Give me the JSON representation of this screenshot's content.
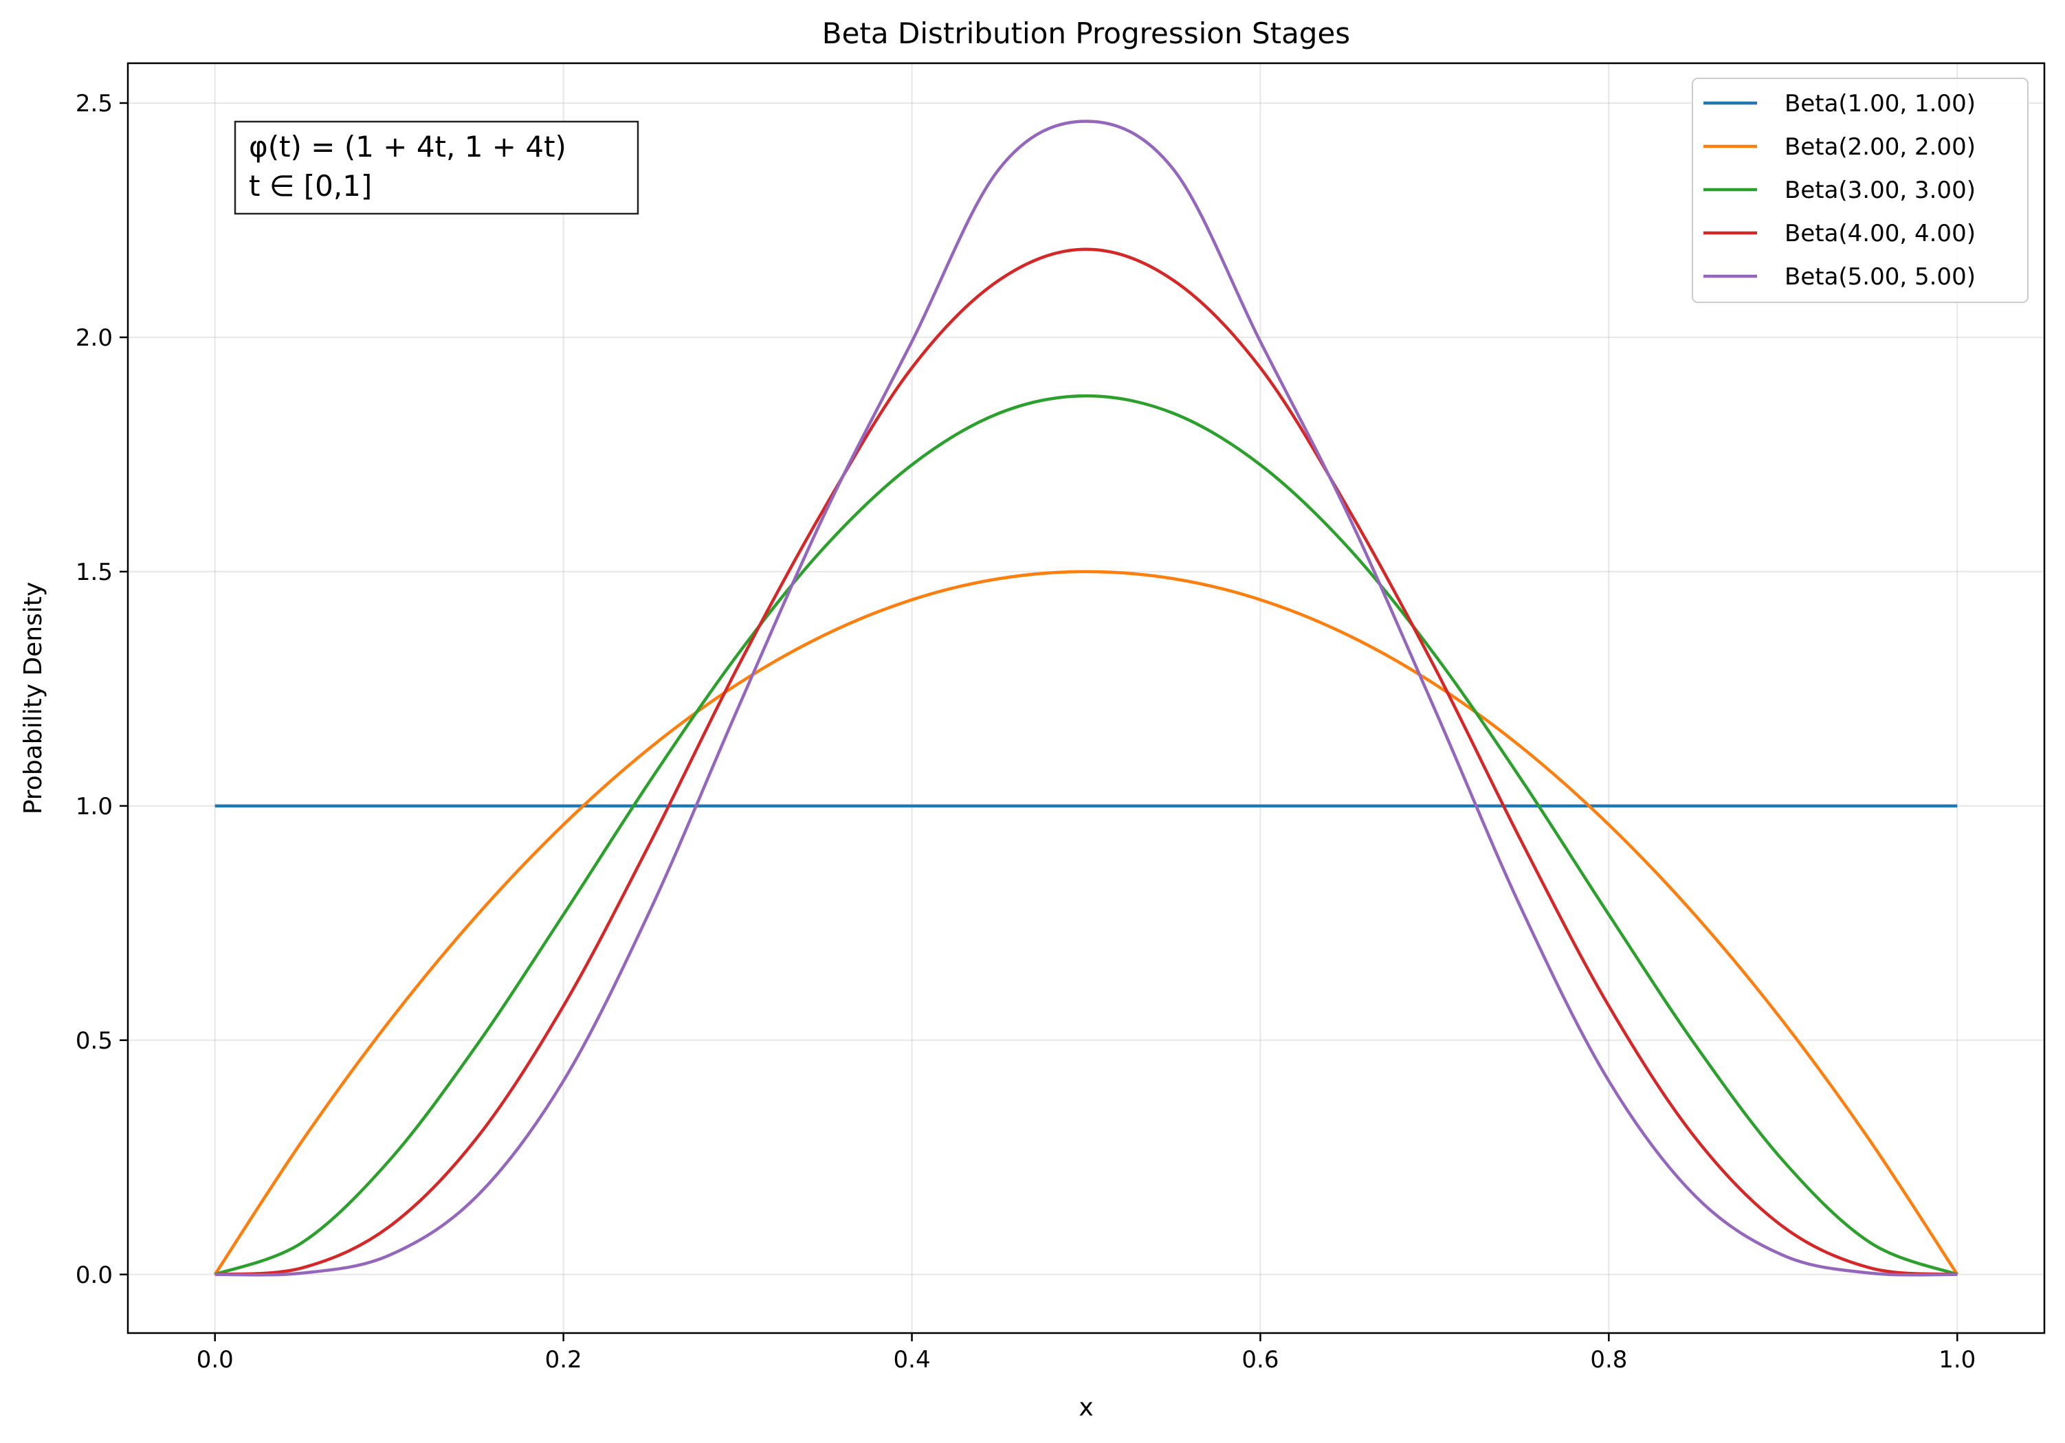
{
  "chart_data": {
    "type": "line",
    "title": "Beta Distribution Progression Stages",
    "xlabel": "x",
    "ylabel": "Probability Density",
    "xlim": [
      -0.05,
      1.05
    ],
    "ylim": [
      -0.125,
      2.585
    ],
    "xticks": [
      0.0,
      0.2,
      0.4,
      0.6,
      0.8,
      1.0
    ],
    "xtick_labels": [
      "0.0",
      "0.2",
      "0.4",
      "0.6",
      "0.8",
      "1.0"
    ],
    "yticks": [
      0.0,
      0.5,
      1.0,
      1.5,
      2.0,
      2.5
    ],
    "ytick_labels": [
      "0.0",
      "0.5",
      "1.0",
      "1.5",
      "2.0",
      "2.5"
    ],
    "grid": true,
    "legend_position": "top-right",
    "annotation": {
      "lines": [
        "φ(t) = (1 + 4t, 1 + 4t)",
        "t ∈ [0,1]"
      ],
      "position": "top-left"
    },
    "series": [
      {
        "name": "Beta(1.00, 1.00)",
        "color": "#1f77b4",
        "x": [
          0.0,
          0.05,
          0.1,
          0.15,
          0.2,
          0.25,
          0.3,
          0.35,
          0.4,
          0.45,
          0.5,
          0.55,
          0.6,
          0.65,
          0.7,
          0.75,
          0.8,
          0.85,
          0.9,
          0.95,
          1.0
        ],
        "y": [
          1.0,
          1.0,
          1.0,
          1.0,
          1.0,
          1.0,
          1.0,
          1.0,
          1.0,
          1.0,
          1.0,
          1.0,
          1.0,
          1.0,
          1.0,
          1.0,
          1.0,
          1.0,
          1.0,
          1.0,
          1.0
        ]
      },
      {
        "name": "Beta(2.00, 2.00)",
        "color": "#ff7f0e",
        "x": [
          0.0,
          0.05,
          0.1,
          0.15,
          0.2,
          0.25,
          0.3,
          0.35,
          0.4,
          0.45,
          0.5,
          0.55,
          0.6,
          0.65,
          0.7,
          0.75,
          0.8,
          0.85,
          0.9,
          0.95,
          1.0
        ],
        "y": [
          0.0,
          0.285,
          0.54,
          0.765,
          0.96,
          1.125,
          1.26,
          1.365,
          1.44,
          1.485,
          1.5,
          1.485,
          1.44,
          1.365,
          1.26,
          1.125,
          0.96,
          0.765,
          0.54,
          0.285,
          0.0
        ]
      },
      {
        "name": "Beta(3.00, 3.00)",
        "color": "#2ca02c",
        "x": [
          0.0,
          0.05,
          0.1,
          0.15,
          0.2,
          0.25,
          0.3,
          0.35,
          0.4,
          0.45,
          0.5,
          0.55,
          0.6,
          0.65,
          0.7,
          0.75,
          0.8,
          0.85,
          0.9,
          0.95,
          1.0
        ],
        "y": [
          0.0,
          0.068,
          0.243,
          0.488,
          0.768,
          1.055,
          1.323,
          1.553,
          1.728,
          1.838,
          1.875,
          1.838,
          1.728,
          1.553,
          1.323,
          1.055,
          0.768,
          0.488,
          0.243,
          0.068,
          0.0
        ]
      },
      {
        "name": "Beta(4.00, 4.00)",
        "color": "#d62728",
        "x": [
          0.0,
          0.05,
          0.1,
          0.15,
          0.2,
          0.25,
          0.3,
          0.35,
          0.4,
          0.45,
          0.5,
          0.55,
          0.6,
          0.65,
          0.7,
          0.75,
          0.8,
          0.85,
          0.9,
          0.95,
          1.0
        ],
        "y": [
          0.0,
          0.014,
          0.102,
          0.29,
          0.573,
          0.923,
          1.296,
          1.637,
          1.935,
          2.122,
          2.188,
          2.122,
          1.935,
          1.637,
          1.296,
          0.923,
          0.573,
          0.29,
          0.102,
          0.014,
          0.0
        ]
      },
      {
        "name": "Beta(5.00, 5.00)",
        "color": "#9467bd",
        "x": [
          0.0,
          0.05,
          0.1,
          0.15,
          0.2,
          0.25,
          0.3,
          0.35,
          0.4,
          0.45,
          0.5,
          0.55,
          0.6,
          0.65,
          0.7,
          0.75,
          0.8,
          0.85,
          0.9,
          0.95,
          1.0
        ],
        "y": [
          0.0,
          0.003,
          0.041,
          0.166,
          0.413,
          0.779,
          1.207,
          1.624,
          1.991,
          2.359,
          2.461,
          2.359,
          1.991,
          1.624,
          1.207,
          0.779,
          0.413,
          0.166,
          0.041,
          0.003,
          0.0
        ]
      }
    ]
  }
}
